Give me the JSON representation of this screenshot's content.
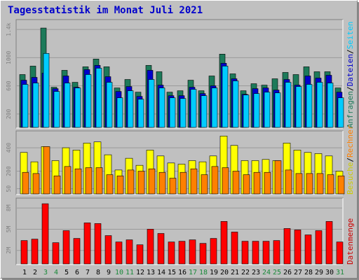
{
  "title": "Tagesstatistik im Monat Juli 2021",
  "colors": {
    "anfragen": "#1d7a5a",
    "dateien": "#0000cc",
    "seiten": "#00ccff",
    "besuche": "#ffff00",
    "rechner": "#ff8000",
    "datenmenge": "#ff0000",
    "weekend_day": "#1a8a3a",
    "weekday": "#000000"
  },
  "legend": {
    "panel1": [
      {
        "text": "Anfragen",
        "color": "#1d7a5a"
      },
      {
        "text": "/",
        "color": "#000000"
      },
      {
        "text": "Dateien",
        "color": "#0000cc"
      },
      {
        "text": "/",
        "color": "#000000"
      },
      {
        "text": "Seiten",
        "color": "#00ccff"
      }
    ],
    "panel2": [
      {
        "text": "Besuche",
        "color": "#cccc00"
      },
      {
        "text": "/",
        "color": "#000000"
      },
      {
        "text": "Rechner",
        "color": "#ff8000"
      }
    ],
    "panel3": [
      {
        "text": "Datenmenge",
        "color": "#cc0000"
      }
    ]
  },
  "chart_data": [
    {
      "type": "bar",
      "series": [
        {
          "name": "Anfragen",
          "values": [
            760,
            880,
            1420,
            580,
            820,
            650,
            870,
            980,
            870,
            570,
            690,
            510,
            890,
            800,
            510,
            530,
            680,
            530,
            740,
            1050,
            770,
            530,
            630,
            610,
            700,
            790,
            760,
            870,
            800,
            800,
            570
          ]
        },
        {
          "name": "Dateien",
          "values": [
            680,
            720,
            780,
            560,
            740,
            580,
            830,
            890,
            730,
            520,
            590,
            450,
            820,
            610,
            460,
            460,
            580,
            490,
            600,
            920,
            700,
            480,
            560,
            570,
            540,
            690,
            610,
            740,
            710,
            750,
            510
          ]
        },
        {
          "name": "Seiten",
          "values": [
            620,
            640,
            1060,
            520,
            640,
            570,
            760,
            850,
            650,
            430,
            530,
            410,
            690,
            570,
            430,
            420,
            550,
            460,
            570,
            880,
            670,
            470,
            490,
            510,
            500,
            650,
            590,
            620,
            650,
            640,
            430
          ]
        }
      ],
      "categories": [
        "1",
        "2",
        "3",
        "4",
        "5",
        "6",
        "7",
        "8",
        "9",
        "10",
        "11",
        "12",
        "13",
        "14",
        "15",
        "16",
        "17",
        "18",
        "19",
        "20",
        "21",
        "22",
        "23",
        "24",
        "25",
        "26",
        "27",
        "28",
        "29",
        "30",
        "31"
      ],
      "weekend": [
        false,
        false,
        true,
        true,
        false,
        false,
        false,
        false,
        false,
        true,
        true,
        false,
        false,
        false,
        false,
        false,
        true,
        true,
        false,
        false,
        false,
        false,
        false,
        true,
        true,
        false,
        false,
        false,
        false,
        false,
        true
      ],
      "yticks": [
        200,
        600,
        1000,
        "1.4k"
      ],
      "ylim": [
        0,
        1500
      ],
      "grid": true
    },
    {
      "type": "bar",
      "series": [
        {
          "name": "Besuche",
          "values": [
            360,
            280,
            410,
            290,
            400,
            380,
            440,
            450,
            340,
            210,
            310,
            250,
            380,
            330,
            270,
            260,
            290,
            280,
            330,
            500,
            420,
            290,
            290,
            300,
            290,
            440,
            380,
            360,
            350,
            330,
            200
          ]
        },
        {
          "name": "Rechner",
          "values": [
            190,
            180,
            410,
            160,
            240,
            220,
            230,
            230,
            170,
            160,
            210,
            200,
            220,
            190,
            140,
            190,
            220,
            170,
            240,
            230,
            200,
            170,
            190,
            190,
            290,
            210,
            180,
            180,
            180,
            170,
            160
          ]
        }
      ],
      "yticks": [
        50,
        200,
        400
      ],
      "ylim": [
        0,
        520
      ],
      "grid": true
    },
    {
      "type": "bar",
      "series": [
        {
          "name": "Datenmenge",
          "values": [
            3.4,
            3.6,
            8.6,
            3.1,
            4.8,
            3.7,
            5.9,
            5.8,
            4.1,
            3.2,
            3.5,
            2.8,
            5.0,
            4.4,
            3.2,
            3.3,
            3.5,
            3.0,
            3.7,
            6.1,
            4.6,
            3.3,
            3.3,
            3.3,
            3.4,
            5.1,
            4.9,
            4.2,
            4.8,
            6.1,
            3.2
          ]
        }
      ],
      "yticks": [
        "2M",
        "5M",
        "8M"
      ],
      "ylim": [
        0,
        9
      ],
      "grid": true
    }
  ]
}
